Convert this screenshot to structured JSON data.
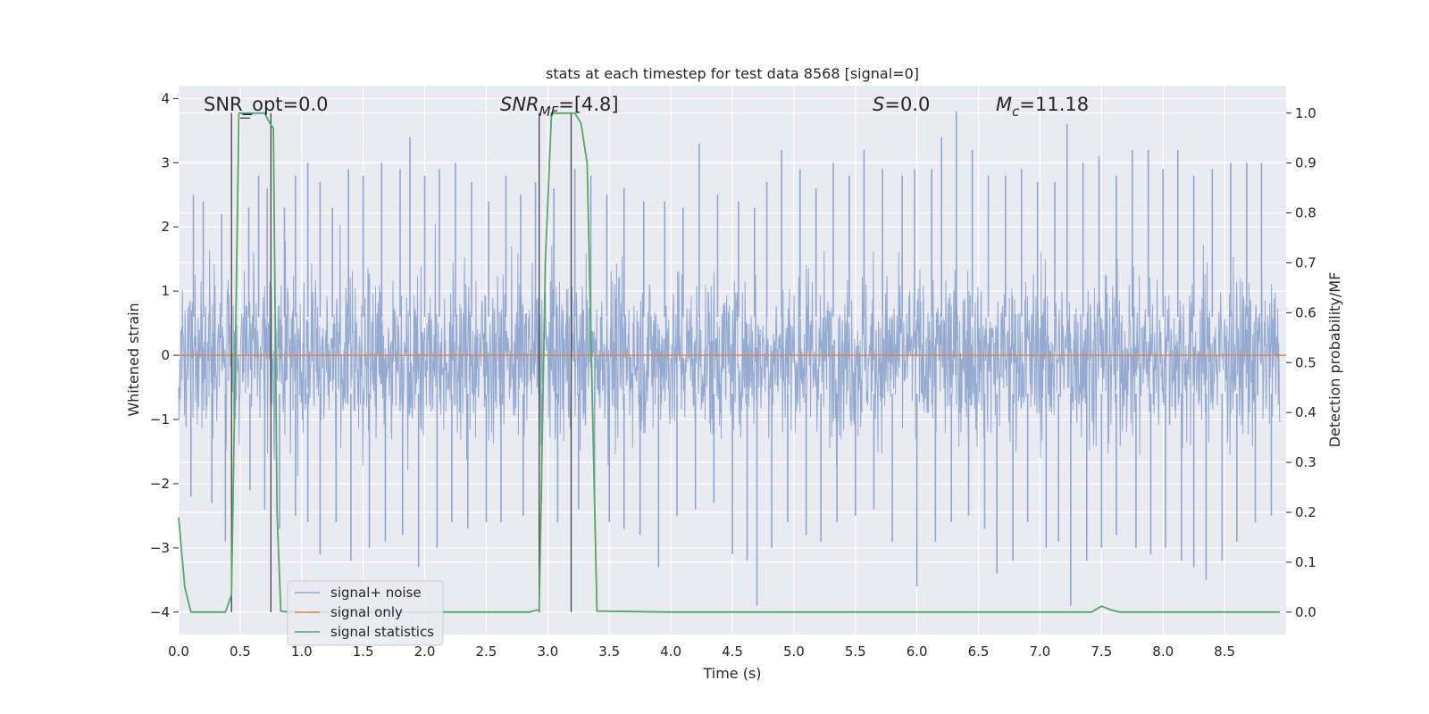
{
  "chart_data": {
    "type": "line",
    "title": "stats at each timestep for test data 8568 [signal=0]",
    "xlabel": "Time (s)",
    "ylabel_left": "Whitened strain",
    "ylabel_right": "Detection probability/MF",
    "xlim": [
      0.0,
      9.0
    ],
    "ylim_left": [
      -4.35,
      4.2
    ],
    "ylim_right": [
      -0.045,
      1.055
    ],
    "x_ticks": [
      "0.0",
      "0.5",
      "1.0",
      "1.5",
      "2.0",
      "2.5",
      "3.0",
      "3.5",
      "4.0",
      "4.5",
      "5.0",
      "5.5",
      "6.0",
      "6.5",
      "7.0",
      "7.5",
      "8.0",
      "8.5"
    ],
    "y_ticks_left": [
      "4",
      "3",
      "2",
      "1",
      "0",
      "−1",
      "−2",
      "−3",
      "−4"
    ],
    "y_ticks_right": [
      "1.0",
      "0.9",
      "0.8",
      "0.7",
      "0.6",
      "0.5",
      "0.4",
      "0.3",
      "0.2",
      "0.1",
      "0.0"
    ],
    "grid": true,
    "legend_position": "lower-left",
    "annotations": {
      "snr_opt": "SNR_opt=0.0",
      "snr_mf_label": "SNR",
      "snr_mf_sub": "MF",
      "snr_mf_value": "=[4.8]",
      "s_label": "S",
      "s_value": "=0.0",
      "mc_label": "M",
      "mc_sub": "c",
      "mc_value": "=11.18"
    },
    "vertical_lines_x": [
      0.43,
      0.75,
      2.93,
      3.19
    ],
    "series": [
      {
        "name": "signal+ noise",
        "color": "#8fa6cf",
        "axis": "left",
        "description_values": "whitened noise, approx. range -3.9 to 3.8",
        "peaks": [
          {
            "x": 0.12,
            "y": 2.5
          },
          {
            "x": 0.2,
            "y": 2.4
          },
          {
            "x": 0.35,
            "y": 2.2
          },
          {
            "x": 0.57,
            "y": 2.3
          },
          {
            "x": 0.65,
            "y": 2.8
          },
          {
            "x": 0.72,
            "y": 2.6
          },
          {
            "x": 0.86,
            "y": 2.3
          },
          {
            "x": 0.95,
            "y": 2.8
          },
          {
            "x": 1.05,
            "y": 3.0
          },
          {
            "x": 1.15,
            "y": 2.7
          },
          {
            "x": 1.25,
            "y": 2.3
          },
          {
            "x": 1.38,
            "y": 2.9
          },
          {
            "x": 1.5,
            "y": 2.8
          },
          {
            "x": 1.65,
            "y": 3.0
          },
          {
            "x": 1.8,
            "y": 2.9
          },
          {
            "x": 1.88,
            "y": 3.4
          },
          {
            "x": 2.0,
            "y": 2.8
          },
          {
            "x": 2.12,
            "y": 2.9
          },
          {
            "x": 2.25,
            "y": 3.0
          },
          {
            "x": 2.38,
            "y": 2.7
          },
          {
            "x": 2.52,
            "y": 2.4
          },
          {
            "x": 2.66,
            "y": 2.8
          },
          {
            "x": 2.78,
            "y": 2.5
          },
          {
            "x": 2.9,
            "y": 2.7
          },
          {
            "x": 3.05,
            "y": 2.6
          },
          {
            "x": 3.22,
            "y": 2.9
          },
          {
            "x": 3.35,
            "y": 2.8
          },
          {
            "x": 3.48,
            "y": 2.5
          },
          {
            "x": 3.62,
            "y": 2.6
          },
          {
            "x": 3.78,
            "y": 2.4
          },
          {
            "x": 3.95,
            "y": 2.4
          },
          {
            "x": 4.1,
            "y": 2.3
          },
          {
            "x": 4.23,
            "y": 3.3
          },
          {
            "x": 4.38,
            "y": 2.5
          },
          {
            "x": 4.55,
            "y": 2.4
          },
          {
            "x": 4.68,
            "y": 2.3
          },
          {
            "x": 4.78,
            "y": 2.7
          },
          {
            "x": 4.9,
            "y": 3.2
          },
          {
            "x": 5.05,
            "y": 2.9
          },
          {
            "x": 5.18,
            "y": 2.6
          },
          {
            "x": 5.32,
            "y": 3.0
          },
          {
            "x": 5.45,
            "y": 2.8
          },
          {
            "x": 5.57,
            "y": 3.2
          },
          {
            "x": 5.72,
            "y": 2.9
          },
          {
            "x": 5.88,
            "y": 2.8
          },
          {
            "x": 5.98,
            "y": 2.9
          },
          {
            "x": 6.12,
            "y": 2.9
          },
          {
            "x": 6.2,
            "y": 3.4
          },
          {
            "x": 6.32,
            "y": 3.8
          },
          {
            "x": 6.45,
            "y": 3.2
          },
          {
            "x": 6.58,
            "y": 2.8
          },
          {
            "x": 6.72,
            "y": 2.8
          },
          {
            "x": 6.85,
            "y": 2.9
          },
          {
            "x": 6.98,
            "y": 2.7
          },
          {
            "x": 7.12,
            "y": 2.7
          },
          {
            "x": 7.22,
            "y": 3.6
          },
          {
            "x": 7.35,
            "y": 3.0
          },
          {
            "x": 7.48,
            "y": 3.1
          },
          {
            "x": 7.62,
            "y": 2.8
          },
          {
            "x": 7.75,
            "y": 3.2
          },
          {
            "x": 7.88,
            "y": 3.2
          },
          {
            "x": 8.0,
            "y": 2.9
          },
          {
            "x": 8.12,
            "y": 3.2
          },
          {
            "x": 8.25,
            "y": 2.8
          },
          {
            "x": 8.4,
            "y": 2.9
          },
          {
            "x": 8.55,
            "y": 3.0
          },
          {
            "x": 8.68,
            "y": 3.0
          },
          {
            "x": 8.8,
            "y": 3.0
          }
        ],
        "troughs": [
          {
            "x": 0.1,
            "y": -2.2
          },
          {
            "x": 0.27,
            "y": -2.3
          },
          {
            "x": 0.38,
            "y": -2.9
          },
          {
            "x": 0.58,
            "y": -2.1
          },
          {
            "x": 0.7,
            "y": -2.4
          },
          {
            "x": 0.82,
            "y": -2.7
          },
          {
            "x": 0.95,
            "y": -2.5
          },
          {
            "x": 1.05,
            "y": -2.6
          },
          {
            "x": 1.15,
            "y": -3.1
          },
          {
            "x": 1.28,
            "y": -2.6
          },
          {
            "x": 1.4,
            "y": -3.2
          },
          {
            "x": 1.55,
            "y": -3.0
          },
          {
            "x": 1.68,
            "y": -2.9
          },
          {
            "x": 1.82,
            "y": -2.8
          },
          {
            "x": 1.95,
            "y": -3.3
          },
          {
            "x": 2.1,
            "y": -3.0
          },
          {
            "x": 2.22,
            "y": -2.6
          },
          {
            "x": 2.35,
            "y": -2.7
          },
          {
            "x": 2.5,
            "y": -2.6
          },
          {
            "x": 2.62,
            "y": -2.6
          },
          {
            "x": 2.8,
            "y": -2.5
          },
          {
            "x": 2.95,
            "y": -2.3
          },
          {
            "x": 3.08,
            "y": -2.6
          },
          {
            "x": 3.25,
            "y": -2.4
          },
          {
            "x": 3.38,
            "y": -2.3
          },
          {
            "x": 3.5,
            "y": -2.6
          },
          {
            "x": 3.62,
            "y": -2.7
          },
          {
            "x": 3.75,
            "y": -2.8
          },
          {
            "x": 3.9,
            "y": -3.3
          },
          {
            "x": 4.05,
            "y": -2.5
          },
          {
            "x": 4.2,
            "y": -2.4
          },
          {
            "x": 4.35,
            "y": -2.3
          },
          {
            "x": 4.5,
            "y": -3.1
          },
          {
            "x": 4.62,
            "y": -3.2
          },
          {
            "x": 4.7,
            "y": -3.9
          },
          {
            "x": 4.82,
            "y": -3.0
          },
          {
            "x": 4.95,
            "y": -2.6
          },
          {
            "x": 5.1,
            "y": -2.8
          },
          {
            "x": 5.22,
            "y": -2.9
          },
          {
            "x": 5.35,
            "y": -2.6
          },
          {
            "x": 5.5,
            "y": -2.5
          },
          {
            "x": 5.65,
            "y": -2.4
          },
          {
            "x": 5.8,
            "y": -2.9
          },
          {
            "x": 6.0,
            "y": -3.6
          },
          {
            "x": 6.15,
            "y": -2.9
          },
          {
            "x": 6.28,
            "y": -2.6
          },
          {
            "x": 6.42,
            "y": -2.5
          },
          {
            "x": 6.55,
            "y": -2.7
          },
          {
            "x": 6.65,
            "y": -3.4
          },
          {
            "x": 6.78,
            "y": -3.2
          },
          {
            "x": 6.9,
            "y": -2.6
          },
          {
            "x": 7.05,
            "y": -3.0
          },
          {
            "x": 7.15,
            "y": -2.9
          },
          {
            "x": 7.25,
            "y": -3.9
          },
          {
            "x": 7.38,
            "y": -3.2
          },
          {
            "x": 7.5,
            "y": -3.0
          },
          {
            "x": 7.62,
            "y": -2.8
          },
          {
            "x": 7.78,
            "y": -3.0
          },
          {
            "x": 7.9,
            "y": -3.1
          },
          {
            "x": 8.02,
            "y": -3.0
          },
          {
            "x": 8.15,
            "y": -3.2
          },
          {
            "x": 8.25,
            "y": -3.3
          },
          {
            "x": 8.35,
            "y": -3.5
          },
          {
            "x": 8.48,
            "y": -3.2
          },
          {
            "x": 8.6,
            "y": -2.9
          },
          {
            "x": 8.75,
            "y": -2.6
          },
          {
            "x": 8.88,
            "y": -2.5
          }
        ]
      },
      {
        "name": "signal only",
        "color": "#dd8452",
        "axis": "left",
        "x": [
          0.0,
          9.0
        ],
        "y": [
          0.0,
          0.0
        ]
      },
      {
        "name": "signal statistics",
        "color": "#55a868",
        "axis": "right",
        "x": [
          0.0,
          0.05,
          0.1,
          0.3,
          0.38,
          0.43,
          0.46,
          0.49,
          0.53,
          0.65,
          0.7,
          0.74,
          0.77,
          0.8,
          0.83,
          0.9,
          1.0,
          2.5,
          2.85,
          2.93,
          2.98,
          3.03,
          3.1,
          3.22,
          3.27,
          3.32,
          3.4,
          4.0,
          5.0,
          6.0,
          7.0,
          7.42,
          7.5,
          7.58,
          7.65,
          8.0,
          8.95
        ],
        "y": [
          0.19,
          0.05,
          0.0,
          0.0,
          0.0,
          0.035,
          0.5,
          1.0,
          1.0,
          1.0,
          1.0,
          0.98,
          0.97,
          0.2,
          0.002,
          0.0,
          0.0,
          0.0,
          0.0,
          0.005,
          0.7,
          1.0,
          1.0,
          1.0,
          0.98,
          0.9,
          0.002,
          0.0,
          0.0,
          0.0,
          0.0,
          0.0,
          0.012,
          0.004,
          0.0,
          0.0,
          0.0
        ]
      }
    ]
  }
}
